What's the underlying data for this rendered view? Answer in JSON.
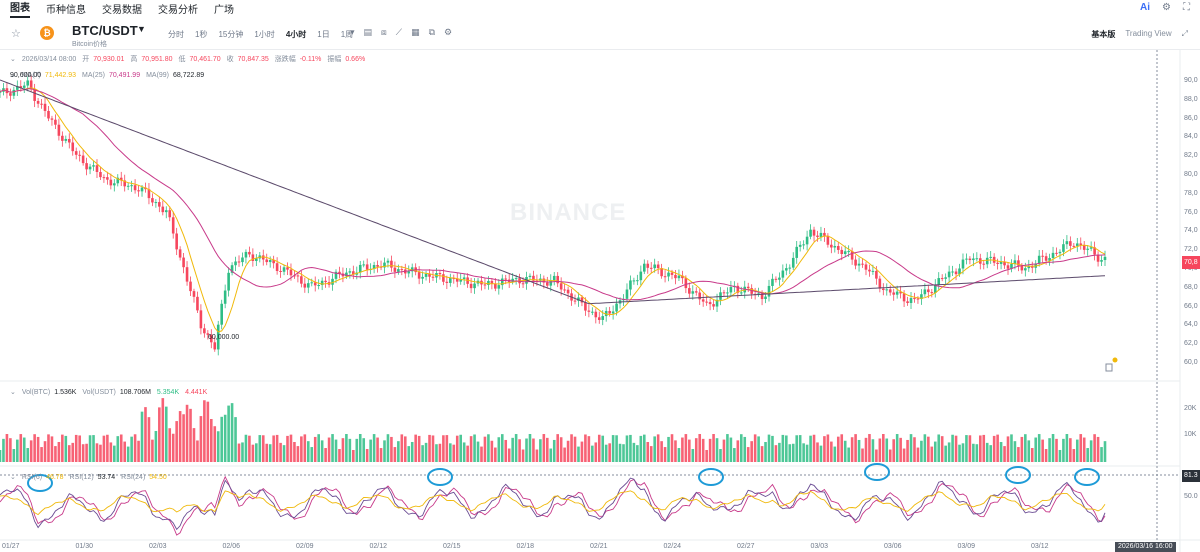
{
  "nav": {
    "tabs": [
      "图表",
      "币种信息",
      "交易数据",
      "交易分析",
      "广场"
    ],
    "active_tab": "图表",
    "ai_label": "Ai"
  },
  "toolbar": {
    "symbol": "BTC/USDT",
    "symbol_sub": "Bitcoin价格",
    "coin_glyph": "₿",
    "intervals": [
      "分时",
      "1秒",
      "15分钟",
      "1小时",
      "4小时",
      "1日",
      "1周"
    ],
    "active_interval": "4小时",
    "views": [
      "基本版",
      "Trading View"
    ],
    "active_view": "基本版"
  },
  "ohlc": {
    "timestamp": "2026/03/14 08:00",
    "open_label": "开",
    "open": "70,930.01",
    "high_label": "高",
    "high": "70,951.80",
    "low_label": "低",
    "low": "70,461.70",
    "close_label": "收",
    "close": "70,847.35",
    "change_label": "涨跌幅",
    "change": "-0.11%",
    "amp_label": "振幅",
    "amp": "0.66%"
  },
  "ma": {
    "ma7_label": "MA(7)",
    "ma7": "71,442.93",
    "ma25_label": "MA(25)",
    "ma25": "70,491.99",
    "ma99_label": "MA(99)",
    "ma99": "68,722.89"
  },
  "volume_legend": {
    "vol_btc_label": "Vol(BTC)",
    "vol_btc": "1.536K",
    "vol_usdt_label": "Vol(USDT)",
    "vol_usdt": "108.706M",
    "ma5": "5.354K",
    "ma10": "4.441K"
  },
  "rsi_legend": {
    "rsi6_label": "RSI(6)",
    "rsi6": "46.78",
    "rsi12_label": "RSI(12)",
    "rsi12": "53.74",
    "rsi24_label": "RSI(24)",
    "rsi24": "54.50"
  },
  "price_axis": [
    "90,0",
    "88,0",
    "86,0",
    "84,0",
    "82,0",
    "80,0",
    "78,0",
    "76,0",
    "74,0",
    "72,0",
    "70,0",
    "68,0",
    "66,0",
    "64,0",
    "62,0",
    "60,0"
  ],
  "volume_axis": [
    "20K",
    "10K"
  ],
  "rsi_axis": [
    "81.3",
    "50.0"
  ],
  "current_price_tag": "70,8",
  "high_marker": "90,600.00",
  "low_marker": "60,000.00",
  "date_axis": [
    "01/27",
    "01/30",
    "02/03",
    "02/06",
    "02/09",
    "02/12",
    "02/15",
    "02/18",
    "02/21",
    "02/24",
    "02/27",
    "03/03",
    "03/06",
    "03/09",
    "03/12"
  ],
  "crosshair_time": "2026/03/16 16:00",
  "watermark": "BINANCE",
  "colors": {
    "up": "#2ebd85",
    "down": "#f6465d",
    "ma7": "#f0b90b",
    "ma25": "#c83a8a",
    "ma99": "#5b4a6b",
    "highlight": "#1e9bd7"
  }
}
